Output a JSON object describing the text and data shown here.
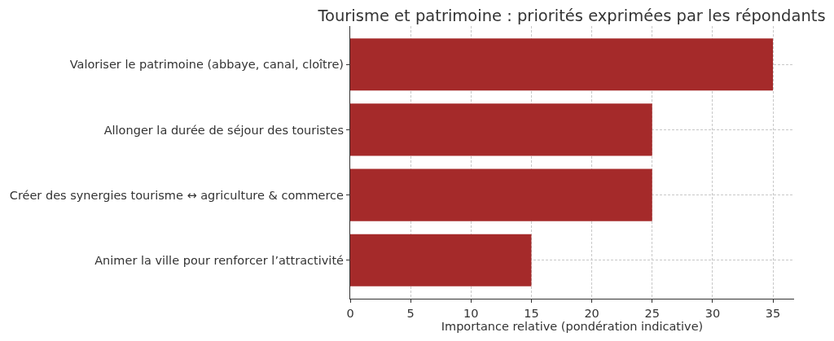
{
  "chart_data": {
    "type": "bar",
    "orientation": "horizontal",
    "title": "Tourisme et patrimoine : priorités exprimées par les répondants",
    "xlabel": "Importance relative (pondération indicative)",
    "categories": [
      "Valoriser le patrimoine (abbaye, canal, cloître)",
      "Allonger la durée de séjour des touristes",
      "Créer des synergies tourisme ↔ agriculture & commerce",
      "Animer la ville pour renforcer l’attractivité"
    ],
    "values": [
      35,
      25,
      25,
      15
    ],
    "color": "#a52a2a",
    "xlim": [
      0,
      36.75
    ],
    "xticks": [
      0,
      5,
      10,
      15,
      20,
      25,
      30,
      35
    ],
    "grid": true
  }
}
